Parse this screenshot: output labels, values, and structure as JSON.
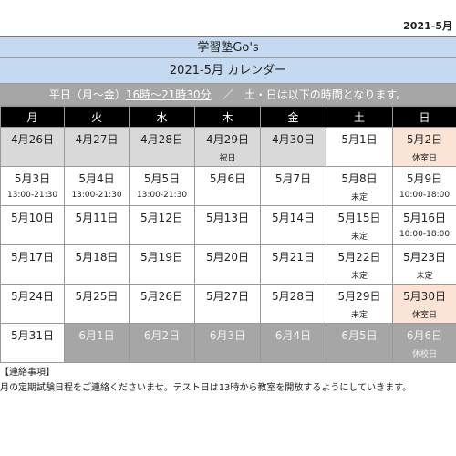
{
  "header": {
    "date": "2021-5月"
  },
  "table": {
    "title": "学習塾Go's",
    "subtitle": "2021-5月 カレンダー",
    "hours_note": [
      "平日（月～金）",
      "16時～21時30分",
      "　／　土・日は以下の時間となります。"
    ],
    "weekdays": [
      "月",
      "火",
      "水",
      "木",
      "金",
      "土",
      "日"
    ],
    "weeks": [
      [
        {
          "date": "4月26日",
          "fill": "#d9d9d9"
        },
        {
          "date": "4月27日",
          "fill": "#d9d9d9"
        },
        {
          "date": "4月28日",
          "fill": "#d9d9d9"
        },
        {
          "date": "4月29日",
          "note": "祝日",
          "fill": "#d9d9d9"
        },
        {
          "date": "4月30日",
          "fill": "#d9d9d9"
        },
        {
          "date": "5月1日"
        },
        {
          "date": "5月2日",
          "note": "休室日",
          "fill": "#fbe4d5"
        }
      ],
      [
        {
          "date": "5月3日",
          "note": "13:00-21:30"
        },
        {
          "date": "5月4日",
          "note": "13:00-21:30"
        },
        {
          "date": "5月5日",
          "note": "13:00-21:30"
        },
        {
          "date": "5月6日"
        },
        {
          "date": "5月7日"
        },
        {
          "date": "5月8日",
          "note": "未定"
        },
        {
          "date": "5月9日",
          "note": "10:00-18:00"
        }
      ],
      [
        {
          "date": "5月10日"
        },
        {
          "date": "5月11日"
        },
        {
          "date": "5月12日"
        },
        {
          "date": "5月13日"
        },
        {
          "date": "5月14日"
        },
        {
          "date": "5月15日",
          "note": "未定"
        },
        {
          "date": "5月16日",
          "note": "10:00-18:00"
        }
      ],
      [
        {
          "date": "5月17日"
        },
        {
          "date": "5月18日"
        },
        {
          "date": "5月19日"
        },
        {
          "date": "5月20日"
        },
        {
          "date": "5月21日"
        },
        {
          "date": "5月22日",
          "note": "未定"
        },
        {
          "date": "5月23日",
          "note": "未定"
        }
      ],
      [
        {
          "date": "5月24日"
        },
        {
          "date": "5月25日"
        },
        {
          "date": "5月26日"
        },
        {
          "date": "5月27日"
        },
        {
          "date": "5月28日"
        },
        {
          "date": "5月29日",
          "note": "未定"
        },
        {
          "date": "5月30日",
          "note": "休室日",
          "fill": "#fbe4d5"
        }
      ],
      [
        {
          "date": "5月31日"
        },
        {
          "date": "6月1日",
          "fill": "#a6a6a6"
        },
        {
          "date": "6月2日",
          "fill": "#a6a6a6"
        },
        {
          "date": "6月3日",
          "fill": "#a6a6a6"
        },
        {
          "date": "6月4日",
          "fill": "#a6a6a6"
        },
        {
          "date": "6月5日",
          "fill": "#a6a6a6"
        },
        {
          "date": "6月6日",
          "note": "休校日",
          "fill": "#a6a6a6"
        }
      ]
    ]
  },
  "notes": {
    "heading": "【連絡事項】",
    "body": "月の定期試験日程をご連絡くださいませ。テスト日は13時から教室を開放するようにしていきます。"
  }
}
